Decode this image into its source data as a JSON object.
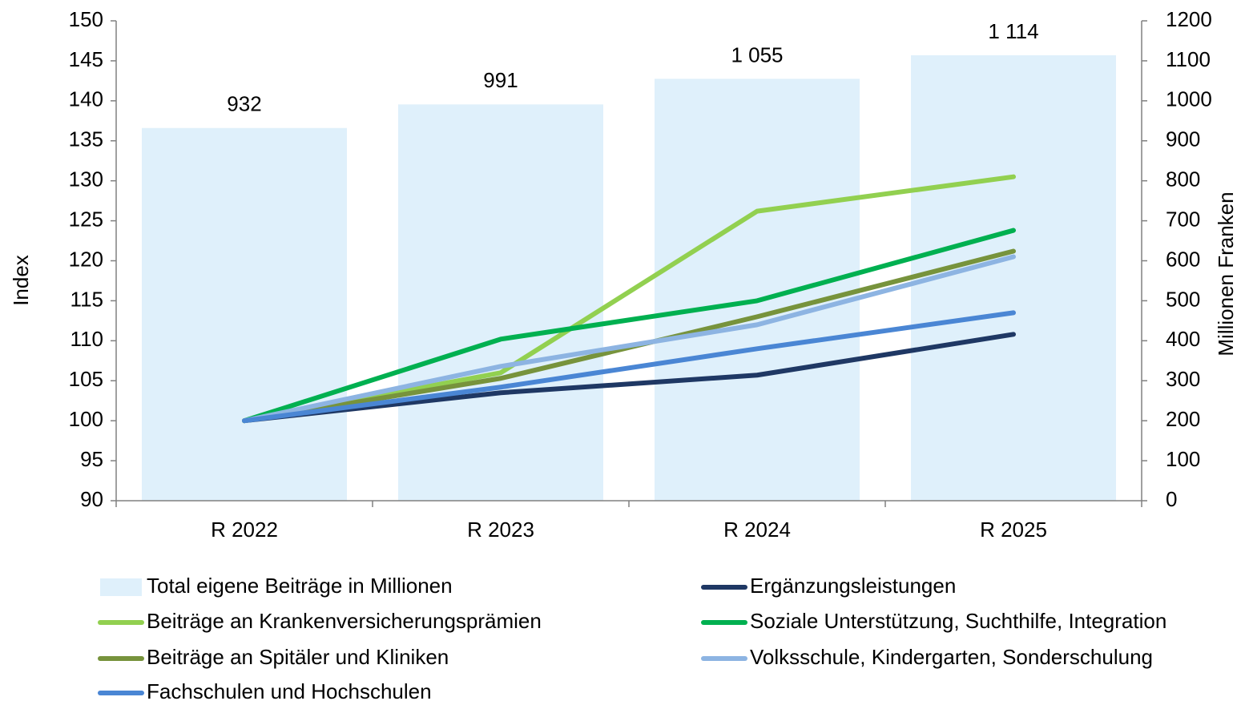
{
  "chart_data": {
    "type": "combo",
    "categories": [
      "R 2022",
      "R 2023",
      "R 2024",
      "R 2025"
    ],
    "ylabel": "Index",
    "y2label": "Millionen Franken",
    "ylim": [
      90,
      150
    ],
    "yticks": [
      90,
      95,
      100,
      105,
      110,
      115,
      120,
      125,
      130,
      135,
      140,
      145,
      150
    ],
    "y2lim": [
      0,
      1200
    ],
    "y2ticks": [
      0,
      100,
      200,
      300,
      400,
      500,
      600,
      700,
      800,
      900,
      1000,
      1100,
      1200
    ],
    "grid": false,
    "legend": "bottom",
    "series": [
      {
        "name": "Total eigene Beiträge in Millionen",
        "type": "bar",
        "axis": "y2",
        "color": "#dff0fb",
        "values": [
          932,
          991,
          1055,
          1114
        ],
        "value_labels": [
          "932",
          "991",
          "1 055",
          "1 114"
        ]
      },
      {
        "name": "Ergänzungsleistungen",
        "type": "line",
        "color": "#1f3864",
        "values": [
          100,
          103.5,
          105.7,
          110.8
        ]
      },
      {
        "name": "Beiträge an Krankenversicherungsprämien",
        "type": "line",
        "color": "#92d050",
        "values": [
          100,
          106,
          126.2,
          130.5
        ]
      },
      {
        "name": "Soziale Unterstützung, Suchthilfe, Integration",
        "type": "line",
        "color": "#00b050",
        "values": [
          100,
          110.2,
          115,
          123.8
        ]
      },
      {
        "name": "Beiträge an Spitäler und Kliniken",
        "type": "line",
        "color": "#77933c",
        "values": [
          100,
          105.3,
          113,
          121.2
        ]
      },
      {
        "name": "Volksschule, Kindergarten, Sonderschulung",
        "type": "line",
        "color": "#8db4e2",
        "values": [
          100,
          106.8,
          112,
          120.5
        ]
      },
      {
        "name": "Fachschulen und Hochschulen",
        "type": "line",
        "color": "#4a86d4",
        "values": [
          100,
          104.2,
          109,
          113.5
        ]
      }
    ]
  }
}
